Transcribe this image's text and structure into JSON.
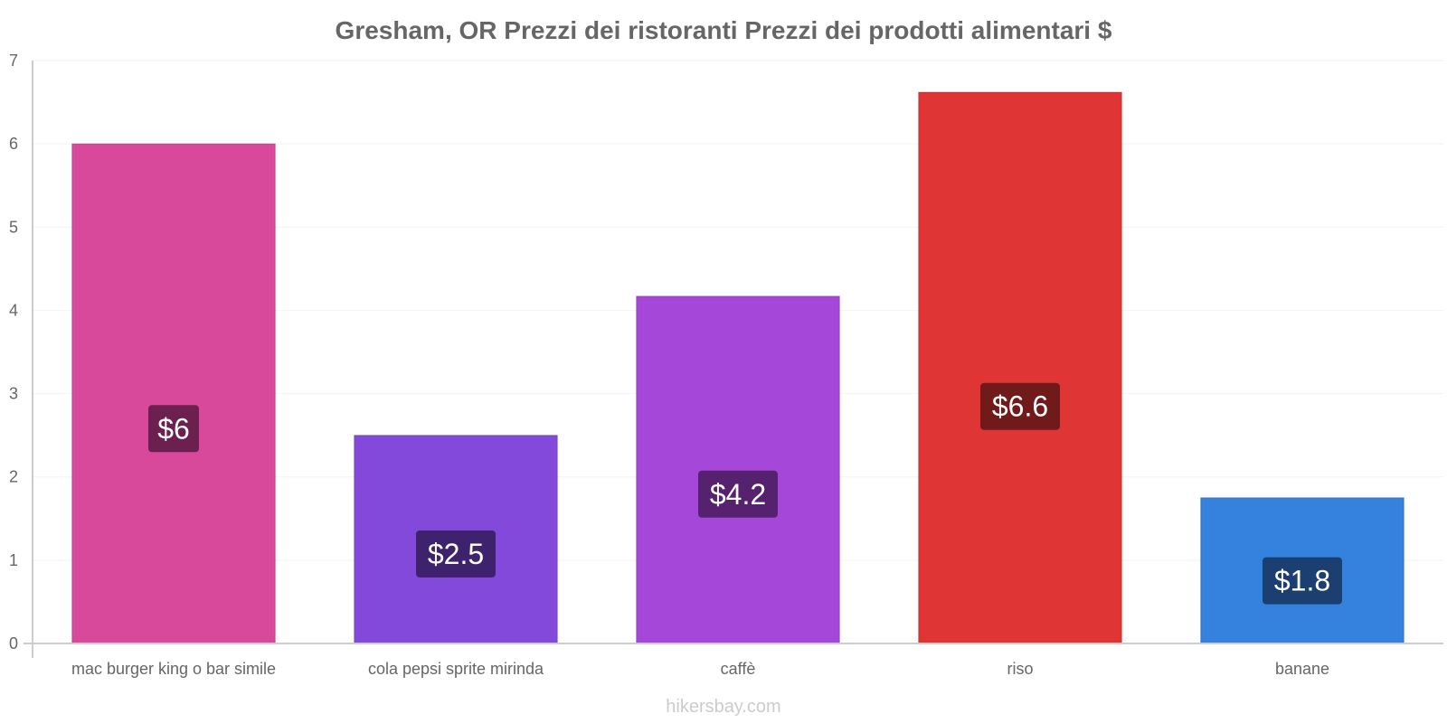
{
  "chart_data": {
    "type": "bar",
    "title": "Gresham, OR Prezzi dei ristoranti Prezzi dei prodotti alimentari $",
    "xlabel": "",
    "ylabel": "",
    "ylim": [
      0,
      7
    ],
    "yticks": [
      "0",
      "1",
      "2",
      "3",
      "4",
      "5",
      "6",
      "7"
    ],
    "categories": [
      "mac burger king o bar simile",
      "cola pepsi sprite mirinda",
      "caffè",
      "riso",
      "banane"
    ],
    "values": [
      6.0,
      2.5,
      4.17,
      6.62,
      1.75
    ],
    "labels": [
      "$6",
      "$2.5",
      "$4.2",
      "$6.6",
      "$1.8"
    ],
    "colors": [
      "#d8489b",
      "#8249da",
      "#a547d9",
      "#e03535",
      "#3582de"
    ],
    "label_colors": [
      "#6b2050",
      "#3f226e",
      "#56226f",
      "#701a1a",
      "#1a3f70"
    ]
  },
  "footer": "hikersbay.com"
}
